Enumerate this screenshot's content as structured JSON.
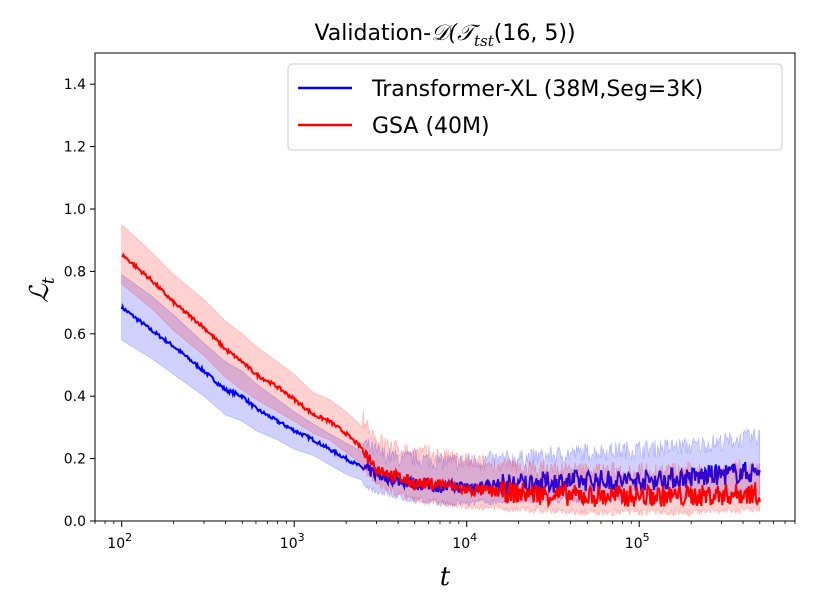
{
  "chart_data": {
    "type": "line",
    "title_main": "Validation-",
    "title_math": "𝒟(𝒯",
    "title_sub": "tst",
    "title_tail": "(16, 5))",
    "xlabel": "t",
    "ylabel_main": "ℒ",
    "ylabel_sub": "t",
    "xscale": "log",
    "xlim": [
      70,
      800000
    ],
    "ylim": [
      0,
      1.5
    ],
    "x_ticks": [
      {
        "value": 100,
        "base": "10",
        "exp": "2"
      },
      {
        "value": 1000,
        "base": "10",
        "exp": "3"
      },
      {
        "value": 10000,
        "base": "10",
        "exp": "4"
      },
      {
        "value": 100000,
        "base": "10",
        "exp": "5"
      }
    ],
    "y_ticks": [
      "0.0",
      "0.2",
      "0.4",
      "0.6",
      "0.8",
      "1.0",
      "1.2",
      "1.4"
    ],
    "legend_position": "top-right",
    "grid": false,
    "series": [
      {
        "name": "Transformer-XL (38M,Seg=3K)",
        "color": "#0000ff",
        "x": [
          100,
          150,
          200,
          300,
          400,
          500,
          600,
          800,
          1000,
          1300,
          1600,
          2000,
          2500,
          3000,
          4000,
          5000,
          7000,
          10000,
          20000,
          50000,
          100000,
          200000,
          500000
        ],
        "mean": [
          0.685,
          0.61,
          0.56,
          0.48,
          0.42,
          0.4,
          0.36,
          0.32,
          0.29,
          0.26,
          0.23,
          0.2,
          0.17,
          0.15,
          0.13,
          0.12,
          0.11,
          0.11,
          0.12,
          0.13,
          0.13,
          0.14,
          0.16
        ],
        "lower": [
          0.58,
          0.52,
          0.47,
          0.4,
          0.34,
          0.32,
          0.29,
          0.26,
          0.23,
          0.21,
          0.18,
          0.15,
          0.13,
          0.11,
          0.09,
          0.08,
          0.07,
          0.07,
          0.08,
          0.08,
          0.09,
          0.09,
          0.1
        ],
        "upper": [
          0.79,
          0.72,
          0.66,
          0.57,
          0.51,
          0.48,
          0.44,
          0.39,
          0.35,
          0.31,
          0.28,
          0.25,
          0.22,
          0.19,
          0.17,
          0.17,
          0.16,
          0.16,
          0.17,
          0.19,
          0.2,
          0.21,
          0.24
        ]
      },
      {
        "name": "GSA (40M)",
        "color": "#ff0000",
        "x": [
          100,
          150,
          200,
          300,
          400,
          500,
          600,
          800,
          1000,
          1300,
          1600,
          2000,
          2500,
          3000,
          4000,
          5000,
          7000,
          10000,
          20000,
          50000,
          100000,
          200000,
          500000
        ],
        "mean": [
          0.855,
          0.77,
          0.7,
          0.62,
          0.55,
          0.51,
          0.47,
          0.43,
          0.39,
          0.34,
          0.32,
          0.28,
          0.23,
          0.17,
          0.14,
          0.12,
          0.12,
          0.1,
          0.09,
          0.08,
          0.08,
          0.08,
          0.09
        ],
        "lower": [
          0.76,
          0.68,
          0.61,
          0.53,
          0.46,
          0.42,
          0.39,
          0.35,
          0.32,
          0.28,
          0.26,
          0.22,
          0.18,
          0.13,
          0.1,
          0.08,
          0.07,
          0.06,
          0.05,
          0.04,
          0.04,
          0.04,
          0.05
        ],
        "upper": [
          0.95,
          0.86,
          0.79,
          0.71,
          0.64,
          0.6,
          0.56,
          0.51,
          0.47,
          0.41,
          0.39,
          0.35,
          0.3,
          0.23,
          0.2,
          0.19,
          0.18,
          0.16,
          0.14,
          0.13,
          0.13,
          0.13,
          0.14
        ]
      }
    ]
  }
}
